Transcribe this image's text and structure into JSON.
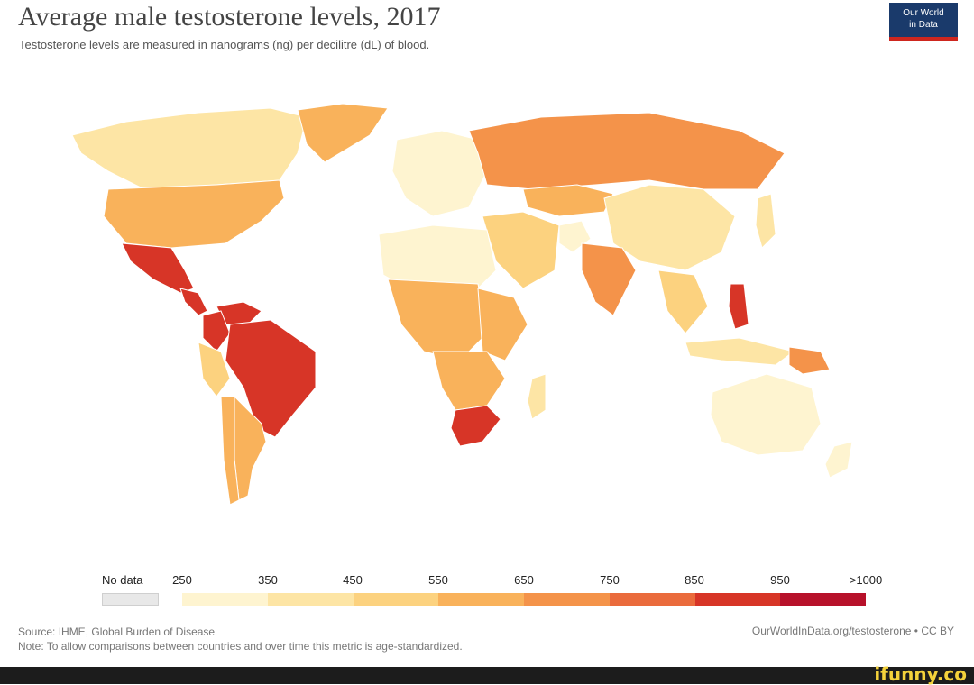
{
  "header": {
    "title": "Average male testosterone levels, 2017",
    "subtitle": "Testosterone levels are measured in nanograms (ng) per decilitre (dL) of blood.",
    "logo_line1": "Our World",
    "logo_line2": "in Data"
  },
  "legend": {
    "no_data_label": "No data",
    "ticks": [
      "250",
      "350",
      "450",
      "550",
      "650",
      "750",
      "850",
      "950",
      ">1000"
    ],
    "colors": [
      "#fef4d0",
      "#fde5a5",
      "#fcd27f",
      "#f9b25b",
      "#f4934a",
      "#ea6b3c",
      "#d73527",
      "#b7112a"
    ],
    "no_data_color": "#e8e8e8"
  },
  "map": {
    "regions": [
      {
        "name": "Canada",
        "color": "#fde5a5"
      },
      {
        "name": "Greenland",
        "color": "#f9b25b"
      },
      {
        "name": "United States",
        "color": "#f9b25b"
      },
      {
        "name": "Mexico",
        "color": "#d73527"
      },
      {
        "name": "Central America",
        "color": "#d73527"
      },
      {
        "name": "Brazil",
        "color": "#d73527"
      },
      {
        "name": "Venezuela",
        "color": "#d73527"
      },
      {
        "name": "Colombia",
        "color": "#d73527"
      },
      {
        "name": "Peru",
        "color": "#fcd27f"
      },
      {
        "name": "Argentina",
        "color": "#f9b25b"
      },
      {
        "name": "Chile",
        "color": "#f9b25b"
      },
      {
        "name": "Europe",
        "color": "#fef4d0"
      },
      {
        "name": "Russia",
        "color": "#f4934a"
      },
      {
        "name": "Kazakhstan",
        "color": "#f9b25b"
      },
      {
        "name": "China",
        "color": "#fde5a5"
      },
      {
        "name": "India",
        "color": "#fcd27f"
      },
      {
        "name": "Middle East",
        "color": "#fef4d0"
      },
      {
        "name": "Afghanistan",
        "color": "#f4934a"
      },
      {
        "name": "North Africa",
        "color": "#fef4d0"
      },
      {
        "name": "Central Africa",
        "color": "#f9b25b"
      },
      {
        "name": "East Africa",
        "color": "#f9b25b"
      },
      {
        "name": "Southern Africa",
        "color": "#f9b25b"
      },
      {
        "name": "South Africa",
        "color": "#d73527"
      },
      {
        "name": "Madagascar",
        "color": "#fde5a5"
      },
      {
        "name": "Southeast Asia",
        "color": "#fcd27f"
      },
      {
        "name": "Philippines",
        "color": "#d73527"
      },
      {
        "name": "Indonesia",
        "color": "#fde5a5"
      },
      {
        "name": "Papua New Guinea",
        "color": "#f4934a"
      },
      {
        "name": "Japan",
        "color": "#fde5a5"
      },
      {
        "name": "Australia",
        "color": "#fef4d0"
      },
      {
        "name": "New Zealand",
        "color": "#fef4d0"
      }
    ]
  },
  "footer": {
    "source": "Source: IHME, Global Burden of Disease",
    "note": "Note: To allow comparisons between countries and over time this metric is age-standardized.",
    "credit": "OurWorldInData.org/testosterone • CC BY",
    "watermark": "ifunny.co"
  }
}
